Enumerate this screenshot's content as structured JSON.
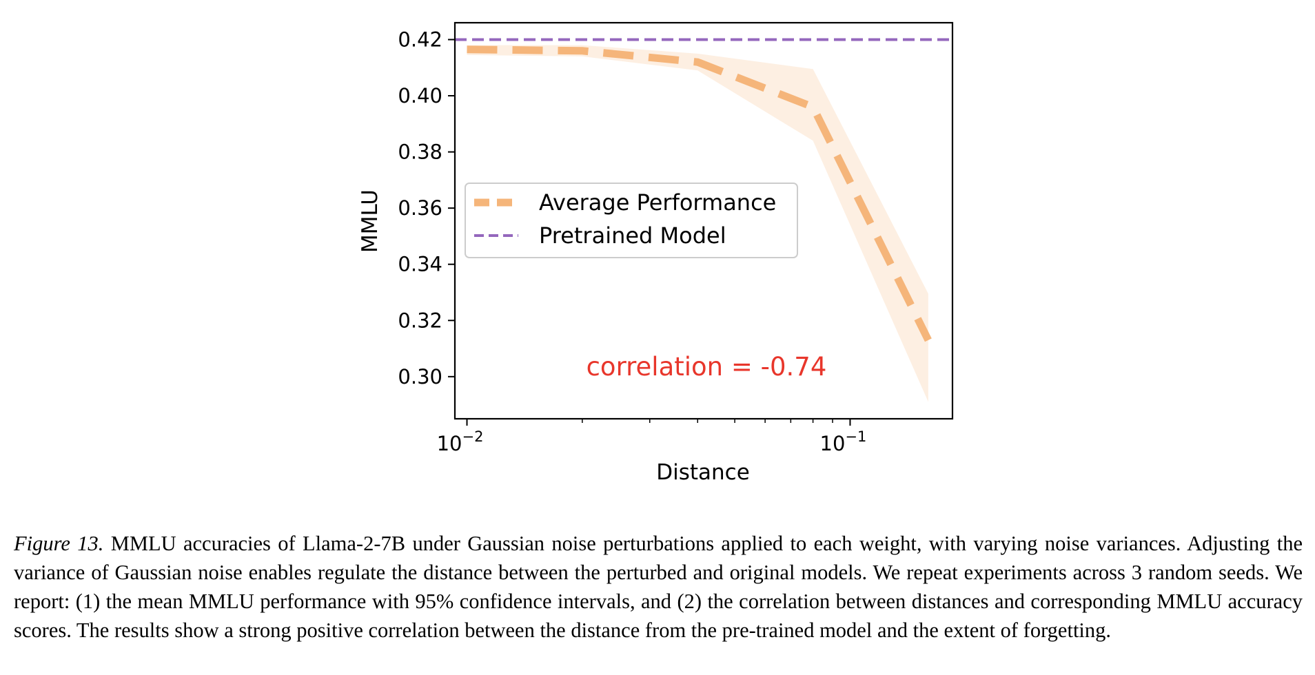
{
  "chart_data": {
    "type": "line",
    "xlabel": "Distance",
    "ylabel": "MMLU",
    "xscale": "log",
    "xlim": [
      0.0093,
      0.185
    ],
    "ylim": [
      0.285,
      0.426
    ],
    "x_ticks": [
      {
        "value": 0.01,
        "base": "10",
        "exp": "−2"
      },
      {
        "value": 0.1,
        "base": "10",
        "exp": "−1"
      }
    ],
    "y_ticks": [
      "0.30",
      "0.32",
      "0.34",
      "0.36",
      "0.38",
      "0.40",
      "0.42"
    ],
    "grid": false,
    "legend_position": "center-left",
    "series": [
      {
        "name": "Average Performance",
        "style": "dashed-thick",
        "color": "#f5b57a",
        "x": [
          0.01,
          0.02,
          0.04,
          0.08,
          0.16
        ],
        "y": [
          0.4165,
          0.416,
          0.412,
          0.396,
          0.313
        ],
        "ci_low": [
          0.4145,
          0.414,
          0.409,
          0.384,
          0.291
        ],
        "ci_high": [
          0.418,
          0.418,
          0.415,
          0.4095,
          0.3295
        ]
      },
      {
        "name": "Pretrained Model",
        "style": "dashed",
        "color": "#9467bd",
        "y": 0.42
      }
    ],
    "annotation": {
      "text": "correlation = -0.74",
      "color": "#e8362b"
    }
  },
  "caption": {
    "label": "Figure 13.",
    "text": " MMLU accuracies of Llama-2-7B under Gaussian noise perturbations applied to each weight, with varying noise variances. Adjusting the variance of Gaussian noise enables regulate the distance between the perturbed and original models. We repeat experiments across 3 random seeds. We report: (1) the mean MMLU performance with 95% confidence intervals, and (2) the correlation between distances and corresponding MMLU accuracy scores. The results show a strong positive correlation between the distance from the pre-trained model and the extent of forgetting."
  }
}
